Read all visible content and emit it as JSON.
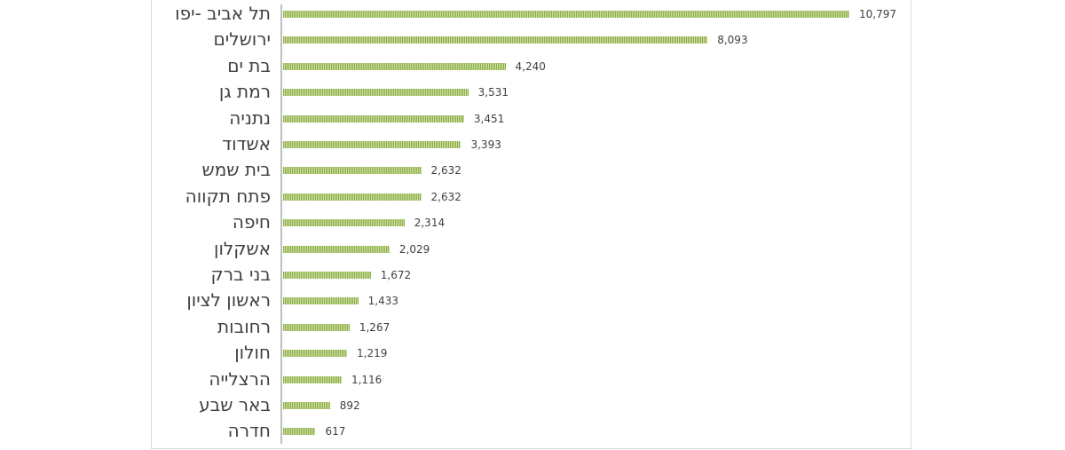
{
  "chart_data": {
    "type": "bar",
    "orientation": "horizontal",
    "title": "",
    "xlabel": "",
    "ylabel": "",
    "categories": [
      "תל אביב -יפו",
      "ירושלים",
      "בת ים",
      "רמת גן",
      "נתניה",
      "אשדוד",
      "בית שמש",
      "פתח תקווה",
      "חיפה",
      "אשקלון",
      "בני ברק",
      "ראשון לציון",
      "רחובות",
      "חולון",
      "הרצלייה",
      "באר שבע",
      "חדרה"
    ],
    "values": [
      10797,
      8093,
      4240,
      3531,
      3451,
      3393,
      2632,
      2632,
      2314,
      2029,
      1672,
      1433,
      1267,
      1219,
      1116,
      892,
      617
    ],
    "value_labels": [
      "10,797",
      "8,093",
      "4,240",
      "3,531",
      "3,451",
      "3,393",
      "2,632",
      "2,632",
      "2,314",
      "2,029",
      "1,672",
      "1,433",
      "1,267",
      "1,219",
      "1,116",
      "892",
      "617"
    ],
    "xlim": [
      0,
      10797
    ],
    "grid": false,
    "legend": "none",
    "bar_color": "#9bbb59"
  }
}
